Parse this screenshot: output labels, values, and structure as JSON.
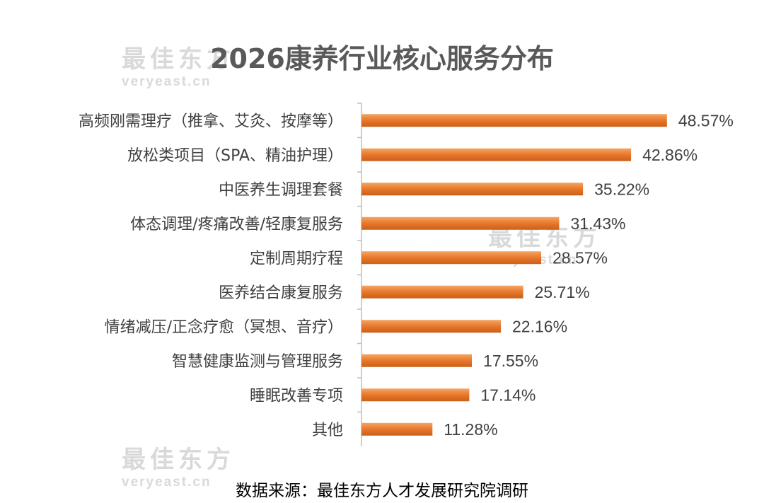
{
  "chart_data": {
    "type": "bar",
    "orientation": "horizontal",
    "title": "2026康养行业核心服务分布",
    "source": "数据来源：最佳东方人才发展研究院调研",
    "categories": [
      "高频刚需理疗（推拿、艾灸、按摩等）",
      "放松类项目（SPA、精油护理）",
      "中医养生调理套餐",
      "体态调理/疼痛改善/轻康复服务",
      "定制周期疗程",
      "医养结合康复服务",
      "情绪减压/正念疗愈（冥想、音疗）",
      "智慧健康监测与管理服务",
      "睡眠改善专项",
      "其他"
    ],
    "values": [
      48.57,
      42.86,
      35.22,
      31.43,
      28.57,
      25.71,
      22.16,
      17.55,
      17.14,
      11.28
    ],
    "value_labels": [
      "48.57%",
      "42.86%",
      "35.22%",
      "31.43%",
      "28.57%",
      "25.71%",
      "22.16%",
      "17.55%",
      "17.14%",
      "11.28%"
    ],
    "xlim": [
      0,
      55
    ],
    "grid": false,
    "bar_color": "#e8772a"
  },
  "watermark": {
    "cn": "最佳东方",
    "en": "veryeast.cn"
  }
}
